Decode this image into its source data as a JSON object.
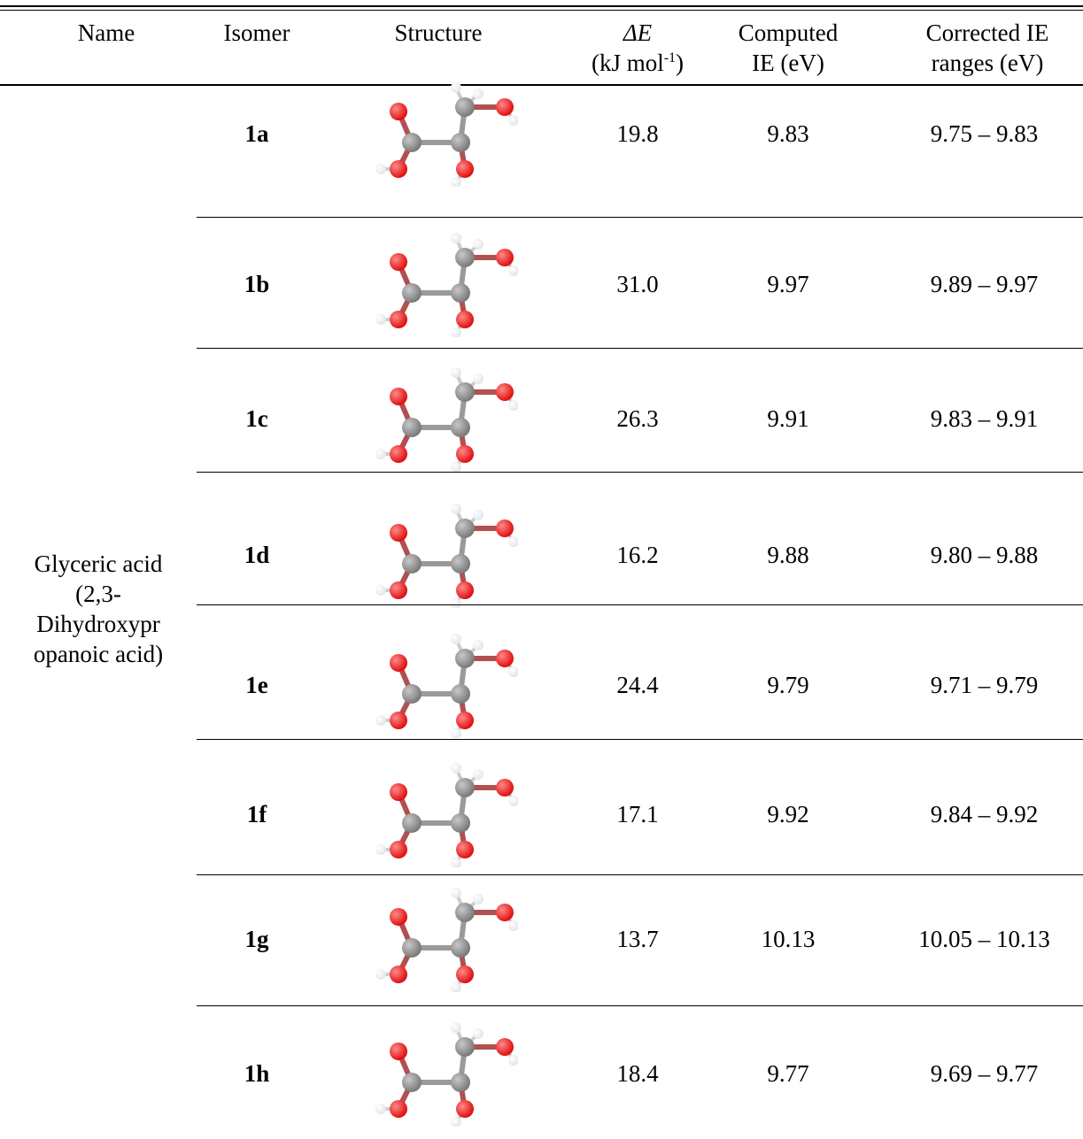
{
  "table": {
    "headers": {
      "name": "Name",
      "isomer": "Isomer",
      "structure": "Structure",
      "delta_e_symbol": "ΔE",
      "delta_e_unit_pre": "(kJ mol",
      "delta_e_unit_sup": "-1",
      "delta_e_unit_post": ")",
      "computed_line1": "Computed",
      "computed_line2": "IE (eV)",
      "corrected_line1": "Corrected IE",
      "corrected_line2": "ranges (eV)"
    },
    "compound_name_lines": [
      "Glyceric acid",
      "(2,3-",
      "Dihydroxypr",
      "opanoic acid)"
    ],
    "rows": [
      {
        "isomer": "1a",
        "delta_e": "19.8",
        "computed_ie": "9.83",
        "corrected_range": "9.75 – 9.83"
      },
      {
        "isomer": "1b",
        "delta_e": "31.0",
        "computed_ie": "9.97",
        "corrected_range": "9.89 – 9.97"
      },
      {
        "isomer": "1c",
        "delta_e": "26.3",
        "computed_ie": "9.91",
        "corrected_range": "9.83 – 9.91"
      },
      {
        "isomer": "1d",
        "delta_e": "16.2",
        "computed_ie": "9.88",
        "corrected_range": "9.80 – 9.88"
      },
      {
        "isomer": "1e",
        "delta_e": "24.4",
        "computed_ie": "9.79",
        "corrected_range": "9.71 – 9.79"
      },
      {
        "isomer": "1f",
        "delta_e": "17.1",
        "computed_ie": "9.92",
        "corrected_range": "9.84 – 9.92"
      },
      {
        "isomer": "1g",
        "delta_e": "13.7",
        "computed_ie": "10.13",
        "corrected_range": "10.05 – 10.13"
      },
      {
        "isomer": "1h",
        "delta_e": "18.4",
        "computed_ie": "9.77",
        "corrected_range": "9.69 – 9.77"
      }
    ],
    "colors": {
      "carbon": "#7a7a7a",
      "oxygen": "#e01010",
      "hydrogen": "#e6e6e6"
    }
  }
}
